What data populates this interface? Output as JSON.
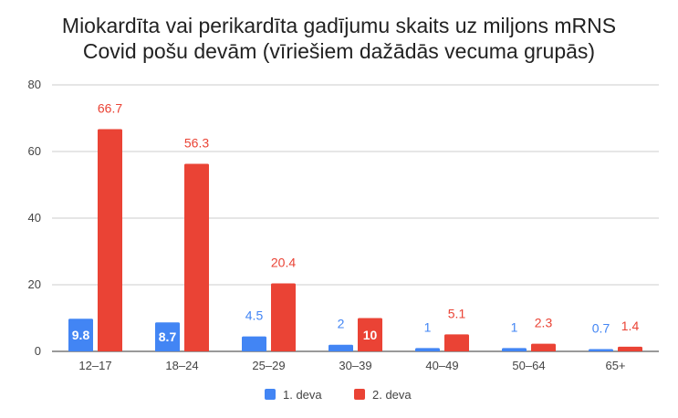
{
  "chart_data": {
    "type": "bar",
    "title_lines": [
      "Miokardīta vai perikardīta gadījumu skaits uz miljons mRNS",
      "Covid pošu devām (vīriešiem dažādās vecuma grupās)"
    ],
    "categories": [
      "12–17",
      "18–24",
      "25–29",
      "30–39",
      "40–49",
      "50–64",
      "65+"
    ],
    "series": [
      {
        "name": "1. deva",
        "color": "#4285f4",
        "values": [
          9.8,
          8.7,
          4.5,
          2,
          1,
          1,
          0.7
        ],
        "labels": [
          "9.8",
          "8.7",
          "4.5",
          "2",
          "1",
          "1",
          "0.7"
        ]
      },
      {
        "name": "2. deva",
        "color": "#ea4335",
        "values": [
          66.7,
          56.3,
          20.4,
          10,
          5.1,
          2.3,
          1.4
        ],
        "labels": [
          "66.7",
          "56.3",
          "20.4",
          "10",
          "5.1",
          "2.3",
          "1.4"
        ]
      }
    ],
    "ylim": [
      0,
      80
    ],
    "yticks": [
      0,
      20,
      40,
      60,
      80
    ],
    "grid": true,
    "legend_position": "bottom",
    "xlabel": "",
    "ylabel": ""
  }
}
